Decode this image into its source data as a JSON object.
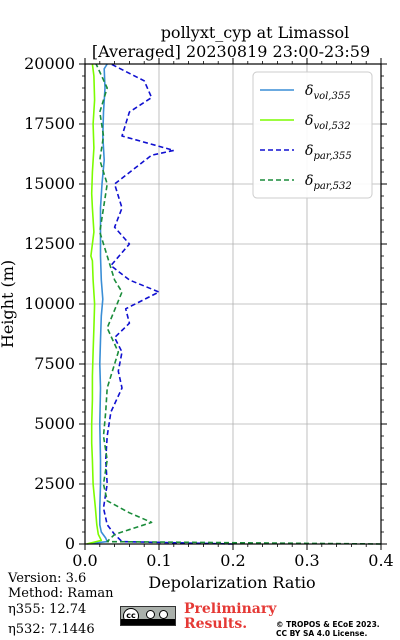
{
  "chart_data": {
    "type": "line",
    "title_line1": "pollyxt_cyp at Limassol",
    "title_line2": "[Averaged] 20230819 23:00-23:59",
    "xlabel": "Depolarization Ratio",
    "ylabel": "Height (m)",
    "xlim": [
      0,
      0.4
    ],
    "ylim": [
      0,
      20000
    ],
    "xticks": [
      "0.0",
      "0.1",
      "0.2",
      "0.3",
      "0.4"
    ],
    "yticks": [
      "0",
      "2500",
      "5000",
      "7500",
      "10000",
      "12500",
      "15000",
      "17500",
      "20000"
    ],
    "grid": true,
    "legend_position": "top-right",
    "series": [
      {
        "name": "vol,355",
        "color": "#3a8ed6",
        "style": "solid",
        "points": [
          [
            0.003,
            0
          ],
          [
            0.03,
            100
          ],
          [
            0.028,
            250
          ],
          [
            0.022,
            500
          ],
          [
            0.02,
            800
          ],
          [
            0.02,
            1500
          ],
          [
            0.021,
            2500
          ],
          [
            0.021,
            3500
          ],
          [
            0.02,
            5000
          ],
          [
            0.021,
            6500
          ],
          [
            0.02,
            7500
          ],
          [
            0.021,
            8500
          ],
          [
            0.022,
            9500
          ],
          [
            0.024,
            10200
          ],
          [
            0.022,
            11000
          ],
          [
            0.021,
            12000
          ],
          [
            0.021,
            13000
          ],
          [
            0.021,
            14000
          ],
          [
            0.023,
            15000
          ],
          [
            0.026,
            16000
          ],
          [
            0.024,
            17000
          ],
          [
            0.025,
            18000
          ],
          [
            0.027,
            19000
          ],
          [
            0.026,
            19800
          ],
          [
            0.03,
            20000
          ]
        ]
      },
      {
        "name": "vol,532",
        "color": "#7cfc00",
        "style": "solid",
        "points": [
          [
            0.002,
            0
          ],
          [
            0.022,
            150
          ],
          [
            0.018,
            400
          ],
          [
            0.016,
            800
          ],
          [
            0.014,
            1500
          ],
          [
            0.011,
            2500
          ],
          [
            0.01,
            3500
          ],
          [
            0.009,
            4200
          ],
          [
            0.009,
            5000
          ],
          [
            0.01,
            6000
          ],
          [
            0.01,
            7000
          ],
          [
            0.011,
            8000
          ],
          [
            0.012,
            9000
          ],
          [
            0.013,
            10000
          ],
          [
            0.011,
            11000
          ],
          [
            0.01,
            11800
          ],
          [
            0.008,
            12000
          ],
          [
            0.012,
            13000
          ],
          [
            0.01,
            14000
          ],
          [
            0.009,
            14600
          ],
          [
            0.01,
            15500
          ],
          [
            0.012,
            16500
          ],
          [
            0.011,
            17500
          ],
          [
            0.013,
            18500
          ],
          [
            0.012,
            19500
          ],
          [
            0.01,
            20000
          ]
        ]
      },
      {
        "name": "par,355",
        "color": "#1010d0",
        "style": "dashed",
        "points": [
          [
            0.2,
            0
          ],
          [
            0.05,
            100
          ],
          [
            0.04,
            400
          ],
          [
            0.03,
            800
          ],
          [
            0.025,
            1500
          ],
          [
            0.03,
            2500
          ],
          [
            0.028,
            3500
          ],
          [
            0.03,
            4500
          ],
          [
            0.035,
            5500
          ],
          [
            0.05,
            6500
          ],
          [
            0.045,
            7200
          ],
          [
            0.05,
            8000
          ],
          [
            0.04,
            8600
          ],
          [
            0.06,
            9200
          ],
          [
            0.055,
            9800
          ],
          [
            0.1,
            10500
          ],
          [
            0.06,
            11000
          ],
          [
            0.035,
            11600
          ],
          [
            0.06,
            12500
          ],
          [
            0.04,
            13200
          ],
          [
            0.05,
            14000
          ],
          [
            0.04,
            15000
          ],
          [
            0.09,
            16200
          ],
          [
            0.12,
            16400
          ],
          [
            0.05,
            17000
          ],
          [
            0.06,
            18000
          ],
          [
            0.09,
            18600
          ],
          [
            0.08,
            19300
          ],
          [
            0.035,
            20000
          ]
        ]
      },
      {
        "name": "par,532",
        "color": "#1a8c3a",
        "style": "dashed",
        "points": [
          [
            0.4,
            0
          ],
          [
            0.03,
            100
          ],
          [
            0.04,
            400
          ],
          [
            0.09,
            900
          ],
          [
            0.06,
            1300
          ],
          [
            0.03,
            1800
          ],
          [
            0.025,
            2500
          ],
          [
            0.03,
            3500
          ],
          [
            0.025,
            4500
          ],
          [
            0.028,
            5500
          ],
          [
            0.03,
            6500
          ],
          [
            0.045,
            8000
          ],
          [
            0.03,
            9000
          ],
          [
            0.05,
            10500
          ],
          [
            0.04,
            11000
          ],
          [
            0.03,
            12000
          ],
          [
            0.02,
            13000
          ],
          [
            0.025,
            14000
          ],
          [
            0.03,
            15000
          ],
          [
            0.02,
            16000
          ],
          [
            0.025,
            17000
          ],
          [
            0.02,
            18000
          ],
          [
            0.03,
            19000
          ],
          [
            0.015,
            20000
          ]
        ]
      }
    ]
  },
  "legend": [
    {
      "label": "δ",
      "sub": "vol,355"
    },
    {
      "label": "δ",
      "sub": "vol,532"
    },
    {
      "label": "δ",
      "sub": "par,355"
    },
    {
      "label": "δ",
      "sub": "par,532"
    }
  ],
  "meta": {
    "version": "Version: 3.6",
    "method": "Method: Raman",
    "eta355": "η355:  12.74",
    "eta532": "η532: 7.1446"
  },
  "prelim_line1": "Preliminary",
  "prelim_line2": "Results.",
  "copyright_line1": "© TROPOS & ECoE 2023.",
  "copyright_line2": "CC BY SA 4.0 License.",
  "cc_badge_text": "cc"
}
